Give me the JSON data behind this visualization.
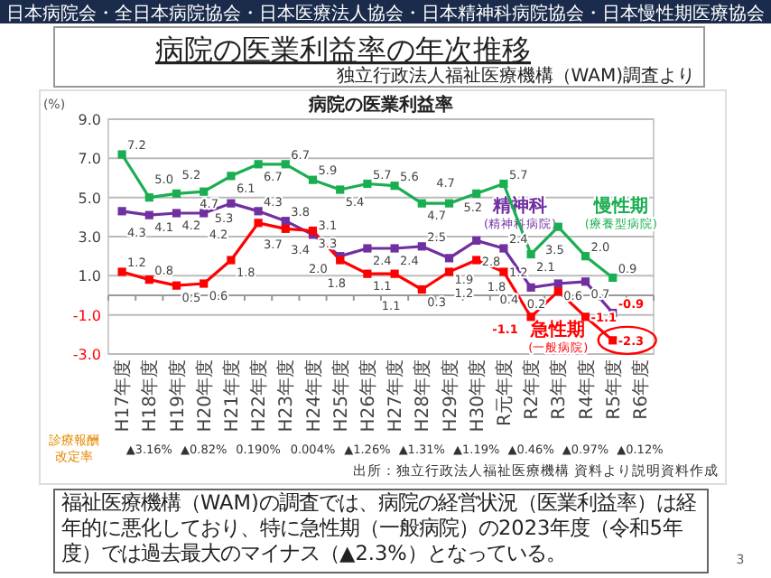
{
  "chart_data": {
    "type": "line",
    "title": "病院の医業利益率の年次推移",
    "subtitle": "独立行政法人福祉医療機構（WAM)調査より",
    "ylabel": "(%)",
    "categories": [
      "H17年度",
      "H18年度",
      "H19年度",
      "H20年度",
      "H21年度",
      "H22年度",
      "H23年度",
      "H24年度",
      "H25年度",
      "H26年度",
      "H27年度",
      "H28年度",
      "H29年度",
      "H30年度",
      "R元年度",
      "R2年度",
      "R3年度",
      "R4年度",
      "R5年度",
      "R6年度"
    ],
    "series": [
      {
        "name": "慢性期$_{(療養型病院)}$",
        "color": "#1aae52",
        "values": [
          7.2,
          5.0,
          5.2,
          5.3,
          6.1,
          6.7,
          6.7,
          5.9,
          5.4,
          5.7,
          5.6,
          4.7,
          4.7,
          5.2,
          5.7,
          2.1,
          3.5,
          2.0,
          0.9,
          null
        ],
        "value_labels": [
          "7.2",
          "5.0",
          "5.2",
          "5.3",
          "6.1",
          "6.7",
          "6.7",
          "5.9",
          "5.4",
          "5.7",
          "5.6",
          "4.7",
          "4.7",
          "5.2",
          "5.7",
          "2.1",
          "3.5",
          "2.0",
          "0.9",
          null
        ]
      },
      {
        "name": "精神科$_{(精神科病院)}$",
        "color": "#7030a0",
        "values": [
          4.3,
          4.1,
          4.2,
          4.2,
          4.7,
          4.3,
          3.8,
          3.1,
          2.0,
          2.4,
          2.4,
          2.5,
          1.9,
          2.8,
          2.4,
          0.4,
          0.6,
          0.7,
          -0.9,
          null
        ],
        "value_labels": [
          "4.3",
          "4.1",
          "4.2",
          "4.2",
          "4.7",
          "4.3",
          "3.8",
          "3.1",
          "2.0",
          "2.4",
          "2.4",
          "2.5",
          "1.9",
          "2.8",
          "2.4",
          "0.4",
          "0.6",
          "0.7",
          "-0.9",
          null
        ]
      },
      {
        "name": "急性期$_{(一般病院)}$",
        "color": "#ff0000",
        "values": [
          1.2,
          0.8,
          0.5,
          0.6,
          1.8,
          3.7,
          3.4,
          3.3,
          1.8,
          1.1,
          1.1,
          0.3,
          1.2,
          1.8,
          1.2,
          -1.1,
          0.2,
          -1.1,
          -2.3,
          null
        ],
        "value_labels": [
          "1.2",
          "0.8",
          "0.5",
          "0.6",
          "1.8",
          "3.7",
          "3.4",
          "3.3",
          "1.8",
          "1.1",
          "1.1",
          "0.3",
          "1.2",
          "1.8",
          "1.2",
          "-1.1",
          "0.2",
          "-1.1",
          "-2.3",
          null
        ]
      }
    ],
    "ylim": [
      -3,
      9
    ],
    "yticks": [
      {
        "value": -3,
        "label": "-3.0"
      },
      {
        "value": -1,
        "label": "-1.0"
      },
      {
        "value": 1,
        "label": "1.0"
      },
      {
        "value": 3,
        "label": "3.0"
      },
      {
        "value": 5,
        "label": "5.0"
      },
      {
        "value": 7,
        "label": "7.0"
      },
      {
        "value": 9,
        "label": "9.0"
      }
    ],
    "grid": "y",
    "marker": "square",
    "line_style": "solid",
    "annotations": [
      "日本病院会・全日本病院協会・日本医療法人協会・日本精神科病院協会・日本慢性期医療協会",
      "病院の医業利益率",
      "診療報酬改定率",
      "▲3.16%",
      "▲0.82%",
      "0.190%",
      "0.004%",
      "▲1.26%",
      "▲1.31%",
      "▲1.19%",
      "▲0.46%",
      "▲0.97%",
      "▲0.12%",
      "出所：独立行政法人福祉医療機構 資料より説明資料作成",
      "福祉医療機構（WAM)の調査では、病院の経営状況（医業利益率）は経年的に悪化しており、特に急性期（一般病院）の2023年度（令和5年度）では過去最大のマイナス（▲2.3%）となっている。",
      "3"
    ]
  }
}
